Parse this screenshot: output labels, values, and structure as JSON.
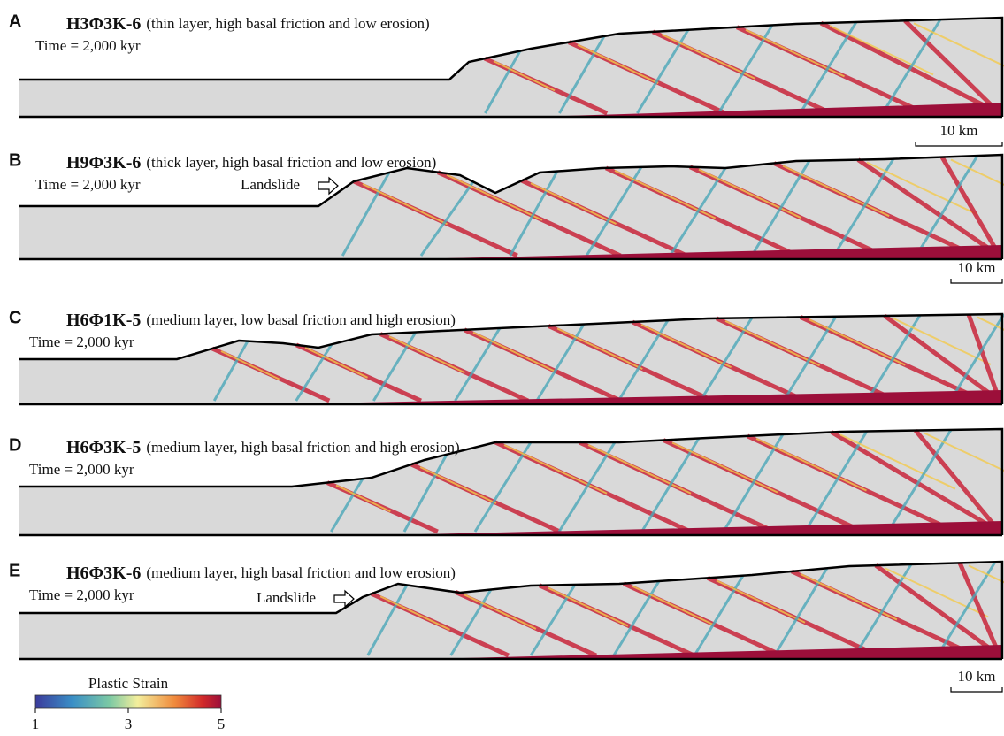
{
  "panels": [
    {
      "letter": "A",
      "model": "H3Φ3K-6",
      "description": "(thin layer, high basal friction and low erosion)",
      "time": "Time = 2,000 kyr",
      "scale_bar": "10 km"
    },
    {
      "letter": "B",
      "model": "H9Φ3K-6",
      "description": "(thick layer, high basal friction and low erosion)",
      "time": "Time = 2,000 kyr",
      "landslide": "Landslide",
      "scale_bar": "10 km"
    },
    {
      "letter": "C",
      "model": "H6Φ1K-5",
      "description": "(medium layer, low basal friction and high erosion)",
      "time": "Time = 2,000 kyr"
    },
    {
      "letter": "D",
      "model": "H6Φ3K-5",
      "description": "(medium layer, high basal friction and high erosion)",
      "time": "Time = 2,000 kyr"
    },
    {
      "letter": "E",
      "model": "H6Φ3K-6",
      "description": "(medium layer, high basal friction and low erosion)",
      "time": "Time = 2,000 kyr",
      "landslide": "Landslide",
      "scale_bar": "10 km"
    }
  ],
  "colorbar": {
    "title": "Plastic Strain",
    "lim": [
      1,
      5
    ],
    "ticks": [
      1,
      3,
      5
    ]
  }
}
